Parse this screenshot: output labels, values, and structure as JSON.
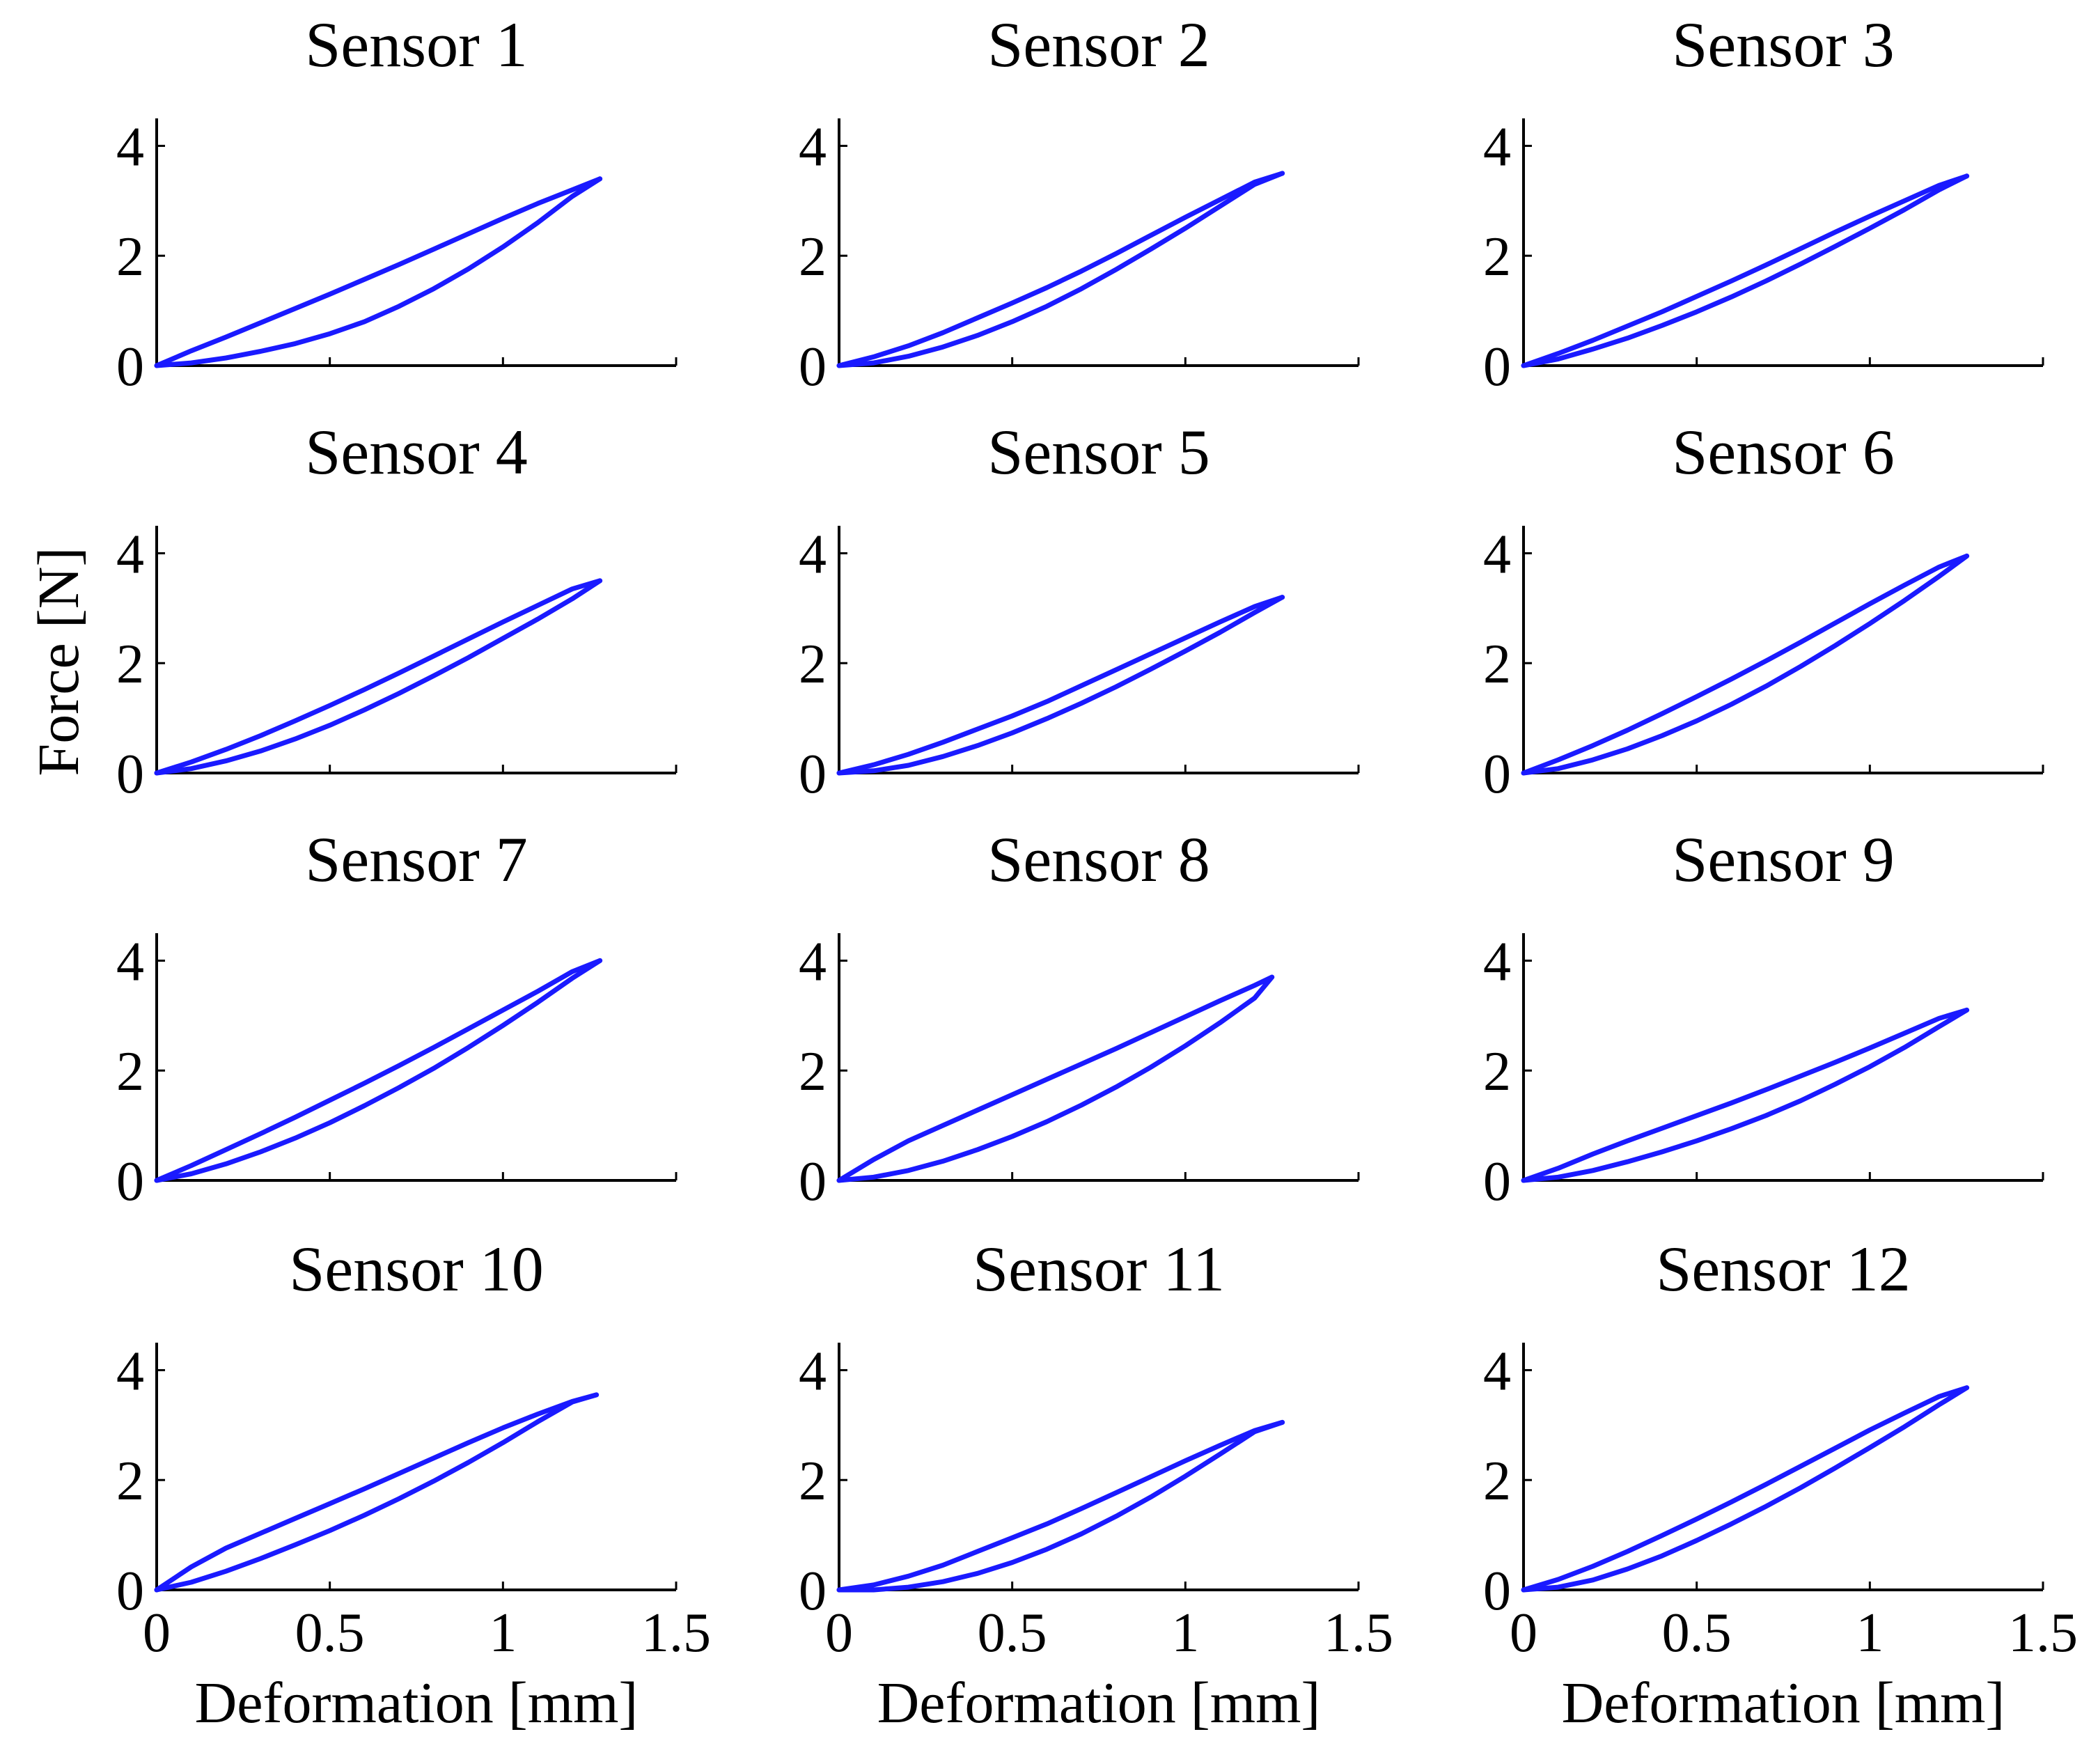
{
  "chart_data": {
    "type": "line",
    "layout": "4x3 grid of small multiples",
    "shared_ylabel": "Force [N]",
    "xlabel": "Deformation [mm]",
    "xlim": [
      0,
      1.5
    ],
    "ylim": [
      0,
      4.5
    ],
    "xticks": [
      0,
      0.5,
      1,
      1.5
    ],
    "xtick_labels": [
      "0",
      "0.5",
      "1",
      "1.5"
    ],
    "yticks": [
      0,
      2,
      4
    ],
    "ytick_labels": [
      "0",
      "2",
      "4"
    ],
    "line_color": "#1a1aff",
    "grid": false,
    "panels": [
      {
        "title": "Sensor 1",
        "loading": {
          "x": [
            0,
            0.1,
            0.2,
            0.3,
            0.4,
            0.5,
            0.6,
            0.7,
            0.8,
            0.9,
            1.0,
            1.1,
            1.2,
            1.28
          ],
          "y": [
            0,
            0.05,
            0.14,
            0.26,
            0.4,
            0.58,
            0.8,
            1.08,
            1.4,
            1.76,
            2.16,
            2.6,
            3.08,
            3.4
          ]
        },
        "unloading": {
          "x": [
            1.28,
            1.2,
            1.1,
            1.0,
            0.9,
            0.8,
            0.7,
            0.6,
            0.5,
            0.4,
            0.3,
            0.2,
            0.1,
            0
          ],
          "y": [
            3.4,
            3.2,
            2.95,
            2.68,
            2.4,
            2.12,
            1.84,
            1.57,
            1.3,
            1.04,
            0.78,
            0.52,
            0.27,
            0
          ]
        }
      },
      {
        "title": "Sensor 2",
        "loading": {
          "x": [
            0,
            0.1,
            0.2,
            0.3,
            0.4,
            0.5,
            0.6,
            0.7,
            0.8,
            0.9,
            1.0,
            1.1,
            1.2,
            1.28
          ],
          "y": [
            0,
            0.05,
            0.17,
            0.34,
            0.55,
            0.8,
            1.08,
            1.4,
            1.75,
            2.12,
            2.5,
            2.9,
            3.3,
            3.5
          ]
        },
        "unloading": {
          "x": [
            1.28,
            1.2,
            1.1,
            1.0,
            0.9,
            0.8,
            0.7,
            0.6,
            0.5,
            0.4,
            0.3,
            0.2,
            0.1,
            0
          ],
          "y": [
            3.5,
            3.34,
            3.02,
            2.7,
            2.37,
            2.04,
            1.72,
            1.42,
            1.14,
            0.87,
            0.6,
            0.36,
            0.16,
            0
          ]
        }
      },
      {
        "title": "Sensor 3",
        "loading": {
          "x": [
            0,
            0.1,
            0.2,
            0.3,
            0.4,
            0.5,
            0.6,
            0.7,
            0.8,
            0.9,
            1.0,
            1.1,
            1.2,
            1.28
          ],
          "y": [
            0,
            0.12,
            0.3,
            0.5,
            0.73,
            0.98,
            1.25,
            1.54,
            1.85,
            2.17,
            2.5,
            2.84,
            3.2,
            3.45
          ]
        },
        "unloading": {
          "x": [
            1.28,
            1.2,
            1.1,
            1.0,
            0.9,
            0.8,
            0.7,
            0.6,
            0.5,
            0.4,
            0.3,
            0.2,
            0.1,
            0
          ],
          "y": [
            3.45,
            3.28,
            3.0,
            2.72,
            2.43,
            2.13,
            1.83,
            1.54,
            1.26,
            0.98,
            0.72,
            0.46,
            0.22,
            0
          ]
        }
      },
      {
        "title": "Sensor 4",
        "loading": {
          "x": [
            0,
            0.1,
            0.2,
            0.3,
            0.4,
            0.5,
            0.6,
            0.7,
            0.8,
            0.9,
            1.0,
            1.1,
            1.2,
            1.28
          ],
          "y": [
            0,
            0.08,
            0.22,
            0.4,
            0.62,
            0.87,
            1.15,
            1.45,
            1.77,
            2.1,
            2.45,
            2.8,
            3.17,
            3.5
          ]
        },
        "unloading": {
          "x": [
            1.28,
            1.2,
            1.1,
            1.0,
            0.9,
            0.8,
            0.7,
            0.6,
            0.5,
            0.4,
            0.3,
            0.2,
            0.1,
            0
          ],
          "y": [
            3.5,
            3.35,
            3.05,
            2.75,
            2.44,
            2.13,
            1.82,
            1.52,
            1.23,
            0.95,
            0.68,
            0.43,
            0.2,
            0
          ]
        }
      },
      {
        "title": "Sensor 5",
        "loading": {
          "x": [
            0,
            0.1,
            0.2,
            0.3,
            0.4,
            0.5,
            0.6,
            0.7,
            0.8,
            0.9,
            1.0,
            1.1,
            1.2,
            1.28
          ],
          "y": [
            0,
            0.04,
            0.14,
            0.3,
            0.5,
            0.73,
            0.99,
            1.27,
            1.57,
            1.89,
            2.22,
            2.56,
            2.92,
            3.2
          ]
        },
        "unloading": {
          "x": [
            1.28,
            1.2,
            1.1,
            1.0,
            0.9,
            0.8,
            0.7,
            0.6,
            0.5,
            0.4,
            0.3,
            0.2,
            0.1,
            0
          ],
          "y": [
            3.2,
            3.03,
            2.75,
            2.46,
            2.17,
            1.88,
            1.59,
            1.3,
            1.04,
            0.8,
            0.56,
            0.34,
            0.15,
            0
          ]
        }
      },
      {
        "title": "Sensor 6",
        "loading": {
          "x": [
            0,
            0.1,
            0.2,
            0.3,
            0.4,
            0.5,
            0.6,
            0.7,
            0.8,
            0.9,
            1.0,
            1.1,
            1.2,
            1.28
          ],
          "y": [
            0,
            0.08,
            0.24,
            0.44,
            0.68,
            0.95,
            1.25,
            1.58,
            1.94,
            2.32,
            2.72,
            3.14,
            3.58,
            3.95
          ]
        },
        "unloading": {
          "x": [
            1.28,
            1.2,
            1.1,
            1.0,
            0.9,
            0.8,
            0.7,
            0.6,
            0.5,
            0.4,
            0.3,
            0.2,
            0.1,
            0
          ],
          "y": [
            3.95,
            3.75,
            3.42,
            3.08,
            2.73,
            2.38,
            2.04,
            1.71,
            1.39,
            1.08,
            0.78,
            0.5,
            0.24,
            0
          ]
        }
      },
      {
        "title": "Sensor 7",
        "loading": {
          "x": [
            0,
            0.1,
            0.2,
            0.3,
            0.4,
            0.5,
            0.6,
            0.7,
            0.8,
            0.9,
            1.0,
            1.1,
            1.2,
            1.28
          ],
          "y": [
            0,
            0.12,
            0.3,
            0.52,
            0.77,
            1.05,
            1.36,
            1.69,
            2.04,
            2.42,
            2.82,
            3.24,
            3.68,
            4.0
          ]
        },
        "unloading": {
          "x": [
            1.28,
            1.2,
            1.1,
            1.0,
            0.9,
            0.8,
            0.7,
            0.6,
            0.5,
            0.4,
            0.3,
            0.2,
            0.1,
            0
          ],
          "y": [
            4.0,
            3.8,
            3.44,
            3.1,
            2.76,
            2.42,
            2.09,
            1.77,
            1.46,
            1.15,
            0.85,
            0.56,
            0.27,
            0
          ]
        }
      },
      {
        "title": "Sensor 8",
        "loading": {
          "x": [
            0,
            0.1,
            0.2,
            0.3,
            0.4,
            0.5,
            0.6,
            0.7,
            0.8,
            0.9,
            1.0,
            1.1,
            1.2,
            1.25
          ],
          "y": [
            0,
            0.06,
            0.18,
            0.35,
            0.56,
            0.8,
            1.07,
            1.37,
            1.7,
            2.06,
            2.45,
            2.87,
            3.32,
            3.7
          ]
        },
        "unloading": {
          "x": [
            1.25,
            1.2,
            1.1,
            1.0,
            0.9,
            0.8,
            0.7,
            0.6,
            0.5,
            0.4,
            0.3,
            0.2,
            0.1,
            0
          ],
          "y": [
            3.7,
            3.55,
            3.27,
            2.98,
            2.69,
            2.4,
            2.12,
            1.84,
            1.56,
            1.28,
            1.0,
            0.72,
            0.38,
            0
          ]
        }
      },
      {
        "title": "Sensor 9",
        "loading": {
          "x": [
            0,
            0.1,
            0.2,
            0.3,
            0.4,
            0.5,
            0.6,
            0.7,
            0.8,
            0.9,
            1.0,
            1.1,
            1.2,
            1.28
          ],
          "y": [
            0,
            0.06,
            0.18,
            0.34,
            0.52,
            0.72,
            0.94,
            1.18,
            1.45,
            1.75,
            2.07,
            2.42,
            2.8,
            3.1
          ]
        },
        "unloading": {
          "x": [
            1.28,
            1.2,
            1.1,
            1.0,
            0.9,
            0.8,
            0.7,
            0.6,
            0.5,
            0.4,
            0.3,
            0.2,
            0.1,
            0
          ],
          "y": [
            3.1,
            2.95,
            2.68,
            2.41,
            2.15,
            1.9,
            1.65,
            1.41,
            1.18,
            0.95,
            0.72,
            0.48,
            0.22,
            0
          ]
        }
      },
      {
        "title": "Sensor 10",
        "loading": {
          "x": [
            0,
            0.1,
            0.2,
            0.3,
            0.4,
            0.5,
            0.6,
            0.7,
            0.8,
            0.9,
            1.0,
            1.1,
            1.2,
            1.27
          ],
          "y": [
            0,
            0.14,
            0.34,
            0.57,
            0.82,
            1.08,
            1.36,
            1.66,
            1.98,
            2.32,
            2.68,
            3.06,
            3.42,
            3.55
          ]
        },
        "unloading": {
          "x": [
            1.27,
            1.2,
            1.1,
            1.0,
            0.9,
            0.8,
            0.7,
            0.6,
            0.5,
            0.4,
            0.3,
            0.2,
            0.1,
            0
          ],
          "y": [
            3.55,
            3.43,
            3.2,
            2.95,
            2.68,
            2.4,
            2.12,
            1.84,
            1.57,
            1.3,
            1.03,
            0.76,
            0.42,
            0
          ]
        }
      },
      {
        "title": "Sensor 11",
        "loading": {
          "x": [
            0,
            0.1,
            0.2,
            0.3,
            0.4,
            0.5,
            0.6,
            0.7,
            0.8,
            0.9,
            1.0,
            1.1,
            1.2,
            1.28
          ],
          "y": [
            0,
            0.0,
            0.05,
            0.15,
            0.3,
            0.5,
            0.74,
            1.02,
            1.34,
            1.69,
            2.07,
            2.47,
            2.88,
            3.05
          ]
        },
        "unloading": {
          "x": [
            1.28,
            1.2,
            1.1,
            1.0,
            0.9,
            0.8,
            0.7,
            0.6,
            0.5,
            0.4,
            0.3,
            0.2,
            0.1,
            0
          ],
          "y": [
            3.05,
            2.9,
            2.63,
            2.35,
            2.06,
            1.77,
            1.48,
            1.2,
            0.95,
            0.7,
            0.45,
            0.25,
            0.09,
            0
          ]
        }
      },
      {
        "title": "Sensor 12",
        "loading": {
          "x": [
            0,
            0.1,
            0.2,
            0.3,
            0.4,
            0.5,
            0.6,
            0.7,
            0.8,
            0.9,
            1.0,
            1.1,
            1.2,
            1.28
          ],
          "y": [
            0,
            0.05,
            0.18,
            0.38,
            0.62,
            0.9,
            1.2,
            1.52,
            1.86,
            2.22,
            2.59,
            2.97,
            3.37,
            3.68
          ]
        },
        "unloading": {
          "x": [
            1.28,
            1.2,
            1.1,
            1.0,
            0.9,
            0.8,
            0.7,
            0.6,
            0.5,
            0.4,
            0.3,
            0.2,
            0.1,
            0
          ],
          "y": [
            3.68,
            3.52,
            3.22,
            2.91,
            2.58,
            2.25,
            1.92,
            1.6,
            1.29,
            0.99,
            0.7,
            0.43,
            0.19,
            0
          ]
        }
      }
    ]
  }
}
